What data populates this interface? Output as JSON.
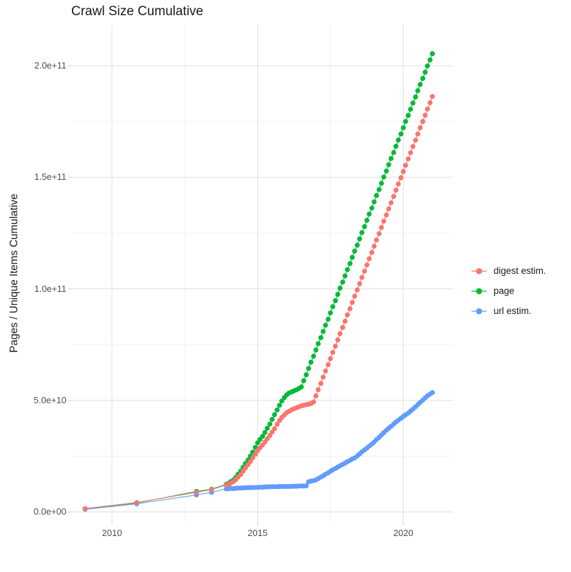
{
  "title": "Crawl Size Cumulative",
  "y_axis_label": "Pages / Unique Items Cumulative",
  "chart_data": {
    "type": "line",
    "title": "Crawl Size Cumulative",
    "xlabel": "",
    "ylabel": "Pages / Unique Items Cumulative",
    "grid": true,
    "legend_position": "right",
    "xlim": [
      2008.6,
      2021.7
    ],
    "ylim": [
      -4600000000,
      218600000000
    ],
    "x_major_ticks": [
      2010,
      2015,
      2020
    ],
    "x_tick_labels": [
      "2010",
      "2015",
      "2020"
    ],
    "x_minor_gridlines": [
      2012.5,
      2017.5
    ],
    "y_major_ticks": [
      0,
      50000000000,
      100000000000,
      150000000000,
      200000000000
    ],
    "y_tick_labels": [
      "0.0e+00",
      "5.0e+10",
      "1.0e+11",
      "1.5e+11",
      "2.0e+11"
    ],
    "y_minor_gridlines": [
      25000000000,
      75000000000,
      125000000000,
      175000000000
    ],
    "points_unit": "billions (1e9 items), x = decimal year",
    "colors": {
      "background": "#ffffff",
      "grid_major": "#e3e3e3",
      "grid_minor": "#f0f0f0",
      "tick": "#cfcfcf",
      "text": "#1a1a1a",
      "tick_text": "#4d4d4d"
    },
    "series": [
      {
        "name": "digest estim.",
        "color": "#F8766D",
        "points": [
          [
            2009.08,
            1.5
          ],
          [
            2010.85,
            4.2
          ],
          [
            2012.9,
            8.8
          ],
          [
            2013.42,
            10.0
          ],
          [
            2013.92,
            12.1
          ],
          [
            2014.0,
            12.3
          ],
          [
            2014.08,
            12.9
          ],
          [
            2014.17,
            13.6
          ],
          [
            2014.25,
            14.5
          ],
          [
            2014.33,
            15.6
          ],
          [
            2014.42,
            16.8
          ],
          [
            2014.5,
            18.3
          ],
          [
            2014.58,
            19.7
          ],
          [
            2014.67,
            21.2
          ],
          [
            2014.75,
            22.6
          ],
          [
            2014.83,
            24.2
          ],
          [
            2014.92,
            25.8
          ],
          [
            2015.0,
            27.5
          ],
          [
            2015.08,
            28.8
          ],
          [
            2015.17,
            30.0
          ],
          [
            2015.25,
            31.4
          ],
          [
            2015.33,
            32.8
          ],
          [
            2015.42,
            34.3
          ],
          [
            2015.5,
            35.8
          ],
          [
            2015.58,
            37.3
          ],
          [
            2015.67,
            39.3
          ],
          [
            2015.75,
            41.0
          ],
          [
            2015.83,
            42.4
          ],
          [
            2015.92,
            43.5
          ],
          [
            2016.0,
            44.5
          ],
          [
            2016.08,
            45.1
          ],
          [
            2016.17,
            45.8
          ],
          [
            2016.25,
            46.3
          ],
          [
            2016.33,
            46.7
          ],
          [
            2016.42,
            47.1
          ],
          [
            2016.5,
            47.5
          ],
          [
            2016.58,
            47.8
          ],
          [
            2016.67,
            48.1
          ],
          [
            2016.75,
            48.3
          ],
          [
            2016.83,
            48.6
          ],
          [
            2016.92,
            49.3
          ],
          [
            2017.0,
            52.0
          ],
          [
            2017.08,
            54.8
          ],
          [
            2017.17,
            57.6
          ],
          [
            2017.25,
            60.4
          ],
          [
            2017.33,
            63.2
          ],
          [
            2017.42,
            66.0
          ],
          [
            2017.5,
            68.7
          ],
          [
            2017.58,
            71.5
          ],
          [
            2017.67,
            74.3
          ],
          [
            2017.75,
            77.1
          ],
          [
            2017.83,
            79.9
          ],
          [
            2017.92,
            82.7
          ],
          [
            2018.0,
            85.5
          ],
          [
            2018.08,
            88.3
          ],
          [
            2018.17,
            91.1
          ],
          [
            2018.25,
            93.9
          ],
          [
            2018.33,
            96.7
          ],
          [
            2018.42,
            99.5
          ],
          [
            2018.5,
            102.3
          ],
          [
            2018.58,
            105.1
          ],
          [
            2018.67,
            107.9
          ],
          [
            2018.75,
            110.7
          ],
          [
            2018.83,
            113.5
          ],
          [
            2018.92,
            116.3
          ],
          [
            2019.0,
            119.1
          ],
          [
            2019.08,
            121.9
          ],
          [
            2019.17,
            124.7
          ],
          [
            2019.25,
            127.5
          ],
          [
            2019.33,
            130.3
          ],
          [
            2019.42,
            133.1
          ],
          [
            2019.5,
            135.9
          ],
          [
            2019.58,
            138.6
          ],
          [
            2019.67,
            141.4
          ],
          [
            2019.75,
            144.2
          ],
          [
            2019.83,
            147.0
          ],
          [
            2019.92,
            149.8
          ],
          [
            2020.0,
            152.6
          ],
          [
            2020.08,
            155.4
          ],
          [
            2020.17,
            158.2
          ],
          [
            2020.25,
            161.0
          ],
          [
            2020.33,
            163.8
          ],
          [
            2020.42,
            166.6
          ],
          [
            2020.5,
            169.4
          ],
          [
            2020.58,
            172.2
          ],
          [
            2020.67,
            175.0
          ],
          [
            2020.75,
            177.8
          ],
          [
            2020.83,
            180.6
          ],
          [
            2020.92,
            183.4
          ],
          [
            2021.0,
            186.2
          ]
        ]
      },
      {
        "name": "page",
        "color": "#00BA38",
        "points": [
          [
            2009.08,
            1.4
          ],
          [
            2010.85,
            4.0
          ],
          [
            2012.9,
            9.2
          ],
          [
            2013.42,
            10.2
          ],
          [
            2013.92,
            12.4
          ],
          [
            2014.0,
            12.8
          ],
          [
            2014.08,
            13.6
          ],
          [
            2014.17,
            14.3
          ],
          [
            2014.25,
            15.5
          ],
          [
            2014.33,
            16.9
          ],
          [
            2014.42,
            18.3
          ],
          [
            2014.5,
            20.0
          ],
          [
            2014.58,
            21.7
          ],
          [
            2014.67,
            23.3
          ],
          [
            2014.75,
            25.0
          ],
          [
            2014.83,
            26.8
          ],
          [
            2014.92,
            28.9
          ],
          [
            2015.0,
            31.0
          ],
          [
            2015.08,
            32.5
          ],
          [
            2015.17,
            33.9
          ],
          [
            2015.25,
            35.6
          ],
          [
            2015.33,
            37.5
          ],
          [
            2015.42,
            39.4
          ],
          [
            2015.5,
            41.5
          ],
          [
            2015.58,
            43.6
          ],
          [
            2015.67,
            45.7
          ],
          [
            2015.75,
            47.8
          ],
          [
            2015.83,
            49.7
          ],
          [
            2015.92,
            51.3
          ],
          [
            2016.0,
            52.5
          ],
          [
            2016.08,
            53.3
          ],
          [
            2016.17,
            53.8
          ],
          [
            2016.25,
            54.3
          ],
          [
            2016.33,
            54.7
          ],
          [
            2016.42,
            55.4
          ],
          [
            2016.5,
            56.0
          ],
          [
            2016.58,
            58.8
          ],
          [
            2016.67,
            61.5
          ],
          [
            2016.75,
            64.3
          ],
          [
            2016.83,
            67.1
          ],
          [
            2016.92,
            69.8
          ],
          [
            2017.0,
            72.6
          ],
          [
            2017.08,
            75.4
          ],
          [
            2017.17,
            78.1
          ],
          [
            2017.25,
            80.9
          ],
          [
            2017.33,
            83.7
          ],
          [
            2017.42,
            86.4
          ],
          [
            2017.5,
            89.2
          ],
          [
            2017.58,
            92.0
          ],
          [
            2017.67,
            94.7
          ],
          [
            2017.75,
            97.5
          ],
          [
            2017.83,
            100.3
          ],
          [
            2017.92,
            103.0
          ],
          [
            2018.0,
            105.8
          ],
          [
            2018.08,
            108.6
          ],
          [
            2018.17,
            111.3
          ],
          [
            2018.25,
            114.1
          ],
          [
            2018.33,
            116.9
          ],
          [
            2018.42,
            119.6
          ],
          [
            2018.5,
            122.4
          ],
          [
            2018.58,
            125.2
          ],
          [
            2018.67,
            127.9
          ],
          [
            2018.75,
            130.7
          ],
          [
            2018.83,
            133.5
          ],
          [
            2018.92,
            136.2
          ],
          [
            2019.0,
            139.0
          ],
          [
            2019.08,
            141.8
          ],
          [
            2019.17,
            144.5
          ],
          [
            2019.25,
            147.3
          ],
          [
            2019.33,
            150.1
          ],
          [
            2019.42,
            152.8
          ],
          [
            2019.5,
            155.6
          ],
          [
            2019.58,
            158.4
          ],
          [
            2019.67,
            161.1
          ],
          [
            2019.75,
            163.9
          ],
          [
            2019.83,
            166.7
          ],
          [
            2019.92,
            169.4
          ],
          [
            2020.0,
            172.2
          ],
          [
            2020.08,
            175.0
          ],
          [
            2020.17,
            177.7
          ],
          [
            2020.25,
            180.5
          ],
          [
            2020.33,
            183.3
          ],
          [
            2020.42,
            186.0
          ],
          [
            2020.5,
            188.8
          ],
          [
            2020.58,
            191.6
          ],
          [
            2020.67,
            194.3
          ],
          [
            2020.75,
            197.1
          ],
          [
            2020.83,
            199.9
          ],
          [
            2020.92,
            202.6
          ],
          [
            2021.0,
            205.4
          ]
        ]
      },
      {
        "name": "url estim.",
        "color": "#619CFF",
        "points": [
          [
            2009.08,
            1.2
          ],
          [
            2010.85,
            3.6
          ],
          [
            2012.9,
            7.6
          ],
          [
            2013.42,
            8.8
          ],
          [
            2013.92,
            10.3
          ],
          [
            2014.0,
            10.4
          ],
          [
            2014.08,
            10.5
          ],
          [
            2014.17,
            10.5
          ],
          [
            2014.25,
            10.6
          ],
          [
            2014.33,
            10.7
          ],
          [
            2014.42,
            10.7
          ],
          [
            2014.5,
            10.8
          ],
          [
            2014.58,
            10.8
          ],
          [
            2014.67,
            10.9
          ],
          [
            2014.75,
            10.9
          ],
          [
            2014.83,
            10.9
          ],
          [
            2014.92,
            11.0
          ],
          [
            2015.0,
            11.0
          ],
          [
            2015.08,
            11.1
          ],
          [
            2015.17,
            11.1
          ],
          [
            2015.25,
            11.2
          ],
          [
            2015.33,
            11.2
          ],
          [
            2015.42,
            11.3
          ],
          [
            2015.5,
            11.3
          ],
          [
            2015.58,
            11.3
          ],
          [
            2015.67,
            11.3
          ],
          [
            2015.75,
            11.4
          ],
          [
            2015.83,
            11.4
          ],
          [
            2015.92,
            11.4
          ],
          [
            2016.0,
            11.4
          ],
          [
            2016.08,
            11.4
          ],
          [
            2016.17,
            11.5
          ],
          [
            2016.25,
            11.5
          ],
          [
            2016.33,
            11.5
          ],
          [
            2016.42,
            11.6
          ],
          [
            2016.5,
            11.6
          ],
          [
            2016.58,
            11.6
          ],
          [
            2016.67,
            11.7
          ],
          [
            2016.75,
            13.5
          ],
          [
            2016.83,
            13.8
          ],
          [
            2016.92,
            14.0
          ],
          [
            2017.0,
            14.3
          ],
          [
            2017.08,
            14.9
          ],
          [
            2017.17,
            15.6
          ],
          [
            2017.25,
            16.2
          ],
          [
            2017.33,
            16.9
          ],
          [
            2017.42,
            17.5
          ],
          [
            2017.5,
            18.2
          ],
          [
            2017.58,
            18.9
          ],
          [
            2017.67,
            19.5
          ],
          [
            2017.75,
            20.1
          ],
          [
            2017.83,
            20.7
          ],
          [
            2017.92,
            21.3
          ],
          [
            2018.0,
            21.9
          ],
          [
            2018.08,
            22.5
          ],
          [
            2018.17,
            23.1
          ],
          [
            2018.25,
            23.7
          ],
          [
            2018.33,
            24.2
          ],
          [
            2018.42,
            25.1
          ],
          [
            2018.5,
            26.0
          ],
          [
            2018.58,
            26.9
          ],
          [
            2018.67,
            27.8
          ],
          [
            2018.75,
            28.6
          ],
          [
            2018.83,
            29.5
          ],
          [
            2018.92,
            30.4
          ],
          [
            2019.0,
            31.3
          ],
          [
            2019.08,
            32.4
          ],
          [
            2019.17,
            33.4
          ],
          [
            2019.25,
            34.5
          ],
          [
            2019.33,
            35.5
          ],
          [
            2019.42,
            36.6
          ],
          [
            2019.5,
            37.5
          ],
          [
            2019.58,
            38.4
          ],
          [
            2019.67,
            39.4
          ],
          [
            2019.75,
            40.3
          ],
          [
            2019.83,
            41.1
          ],
          [
            2019.92,
            42.0
          ],
          [
            2020.0,
            42.8
          ],
          [
            2020.08,
            43.5
          ],
          [
            2020.17,
            44.3
          ],
          [
            2020.25,
            45.2
          ],
          [
            2020.33,
            46.1
          ],
          [
            2020.42,
            47.1
          ],
          [
            2020.5,
            48.1
          ],
          [
            2020.58,
            49.1
          ],
          [
            2020.67,
            50.1
          ],
          [
            2020.75,
            51.1
          ],
          [
            2020.83,
            52.0
          ],
          [
            2020.92,
            52.8
          ],
          [
            2021.0,
            53.5
          ]
        ]
      }
    ]
  }
}
